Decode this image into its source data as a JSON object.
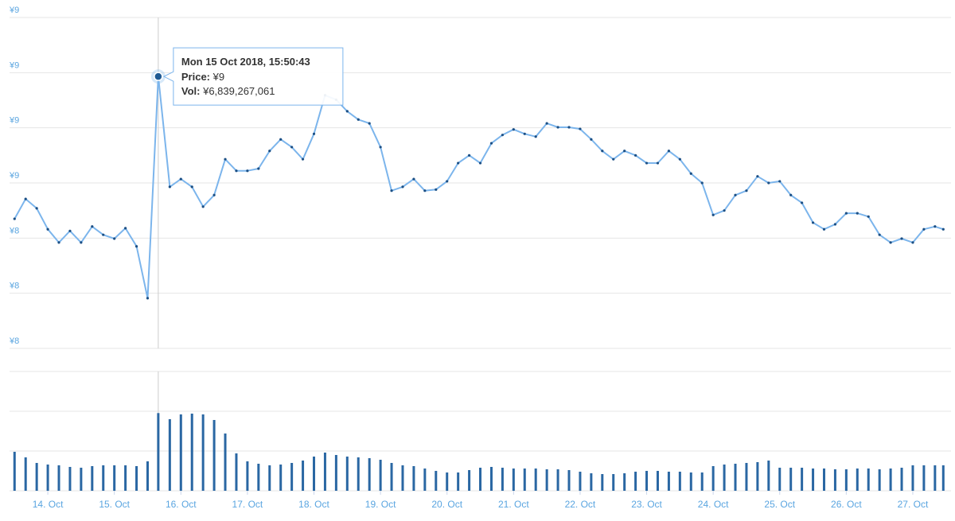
{
  "chart_data": {
    "type": "line",
    "x": [
      "2018-10-13T12:00",
      "2018-10-13T16:00",
      "2018-10-13T20:00",
      "2018-10-14T00:00",
      "2018-10-14T04:00",
      "2018-10-14T08:00",
      "2018-10-14T12:00",
      "2018-10-14T16:00",
      "2018-10-14T20:00",
      "2018-10-15T00:00",
      "2018-10-15T04:00",
      "2018-10-15T08:00",
      "2018-10-15T12:00",
      "2018-10-15T15:50:43",
      "2018-10-15T20:00",
      "2018-10-16T00:00",
      "2018-10-16T04:00",
      "2018-10-16T08:00",
      "2018-10-16T12:00",
      "2018-10-16T16:00",
      "2018-10-16T20:00",
      "2018-10-17T00:00",
      "2018-10-17T04:00",
      "2018-10-17T08:00",
      "2018-10-17T12:00",
      "2018-10-17T16:00",
      "2018-10-17T20:00",
      "2018-10-18T00:00",
      "2018-10-18T04:00",
      "2018-10-18T08:00",
      "2018-10-18T12:00",
      "2018-10-18T16:00",
      "2018-10-18T20:00",
      "2018-10-19T00:00",
      "2018-10-19T04:00",
      "2018-10-19T08:00",
      "2018-10-19T12:00",
      "2018-10-19T16:00",
      "2018-10-19T20:00",
      "2018-10-20T00:00",
      "2018-10-20T04:00",
      "2018-10-20T08:00",
      "2018-10-20T12:00",
      "2018-10-20T16:00",
      "2018-10-20T20:00",
      "2018-10-21T00:00",
      "2018-10-21T04:00",
      "2018-10-21T08:00",
      "2018-10-21T12:00",
      "2018-10-21T16:00",
      "2018-10-21T20:00",
      "2018-10-22T00:00",
      "2018-10-22T04:00",
      "2018-10-22T08:00",
      "2018-10-22T12:00",
      "2018-10-22T16:00",
      "2018-10-22T20:00",
      "2018-10-23T00:00",
      "2018-10-23T04:00",
      "2018-10-23T08:00",
      "2018-10-23T12:00",
      "2018-10-23T16:00",
      "2018-10-23T20:00",
      "2018-10-24T00:00",
      "2018-10-24T04:00",
      "2018-10-24T08:00",
      "2018-10-24T12:00",
      "2018-10-24T16:00",
      "2018-10-24T20:00",
      "2018-10-25T00:00",
      "2018-10-25T04:00",
      "2018-10-25T08:00",
      "2018-10-25T12:00",
      "2018-10-25T16:00",
      "2018-10-25T20:00",
      "2018-10-26T00:00",
      "2018-10-26T04:00",
      "2018-10-26T08:00",
      "2018-10-26T12:00",
      "2018-10-26T16:00",
      "2018-10-26T20:00",
      "2018-10-27T00:00",
      "2018-10-27T04:00",
      "2018-10-27T08:00",
      "2018-10-27T11:00"
    ],
    "series": [
      {
        "type": "line",
        "color": "#7cb5ec",
        "marker_color": "#1c4f84",
        "values": [
          8.485,
          8.521,
          8.504,
          8.466,
          8.442,
          8.463,
          8.442,
          8.471,
          8.456,
          8.449,
          8.468,
          8.435,
          8.341,
          8.743,
          8.543,
          8.557,
          8.543,
          8.507,
          8.528,
          8.593,
          8.572,
          8.572,
          8.576,
          8.608,
          8.629,
          8.615,
          8.593,
          8.639,
          8.709,
          8.701,
          8.68,
          8.665,
          8.658,
          8.615,
          8.536,
          8.543,
          8.557,
          8.536,
          8.538,
          8.553,
          8.586,
          8.6,
          8.586,
          8.622,
          8.637,
          8.647,
          8.639,
          8.634,
          8.658,
          8.651,
          8.651,
          8.648,
          8.629,
          8.608,
          8.593,
          8.608,
          8.6,
          8.586,
          8.586,
          8.608,
          8.593,
          8.567,
          8.55,
          8.492,
          8.5,
          8.528,
          8.536,
          8.562,
          8.55,
          8.553,
          8.528,
          8.514,
          8.478,
          8.466,
          8.475,
          8.495,
          8.495,
          8.489,
          8.456,
          8.442,
          8.449,
          8.442,
          8.466,
          8.471,
          8.466
        ]
      },
      {
        "type": "bar",
        "axis": "y2",
        "color": "#2a67a3",
        "values": [
          3430000000,
          2940000000,
          2450000000,
          2310000000,
          2240000000,
          2100000000,
          2030000000,
          2170000000,
          2240000000,
          2240000000,
          2240000000,
          2170000000,
          2590000000,
          6839267061,
          6300000000,
          6720000000,
          6790000000,
          6720000000,
          6230000000,
          5040000000,
          3290000000,
          2590000000,
          2380000000,
          2240000000,
          2310000000,
          2450000000,
          2660000000,
          3010000000,
          3360000000,
          3150000000,
          3010000000,
          2940000000,
          2870000000,
          2730000000,
          2450000000,
          2240000000,
          2170000000,
          1960000000,
          1750000000,
          1610000000,
          1610000000,
          1820000000,
          2030000000,
          2100000000,
          2030000000,
          1960000000,
          1960000000,
          1960000000,
          1890000000,
          1890000000,
          1820000000,
          1680000000,
          1540000000,
          1470000000,
          1470000000,
          1540000000,
          1680000000,
          1750000000,
          1750000000,
          1680000000,
          1680000000,
          1610000000,
          1610000000,
          2170000000,
          2310000000,
          2380000000,
          2450000000,
          2520000000,
          2660000000,
          2030000000,
          2030000000,
          2030000000,
          1960000000,
          1960000000,
          1890000000,
          1890000000,
          1960000000,
          1960000000,
          1890000000,
          1960000000,
          2030000000,
          2240000000,
          2240000000,
          2240000000,
          2240000000
        ]
      }
    ],
    "xlim": [
      "2018-10-13T10:12",
      "2018-10-27T10:55"
    ],
    "xticks": [
      {
        "value": "2018-10-14T00:00",
        "label": "14. Oct"
      },
      {
        "value": "2018-10-15T00:00",
        "label": "15. Oct"
      },
      {
        "value": "2018-10-16T00:00",
        "label": "16. Oct"
      },
      {
        "value": "2018-10-17T00:00",
        "label": "17. Oct"
      },
      {
        "value": "2018-10-18T00:00",
        "label": "18. Oct"
      },
      {
        "value": "2018-10-19T00:00",
        "label": "19. Oct"
      },
      {
        "value": "2018-10-20T00:00",
        "label": "20. Oct"
      },
      {
        "value": "2018-10-21T00:00",
        "label": "21. Oct"
      },
      {
        "value": "2018-10-22T00:00",
        "label": "22. Oct"
      },
      {
        "value": "2018-10-23T00:00",
        "label": "23. Oct"
      },
      {
        "value": "2018-10-24T00:00",
        "label": "24. Oct"
      },
      {
        "value": "2018-10-25T00:00",
        "label": "25. Oct"
      },
      {
        "value": "2018-10-26T00:00",
        "label": "26. Oct"
      },
      {
        "value": "2018-10-27T00:00",
        "label": "27. Oct"
      }
    ],
    "ylim": [
      8.25,
      8.85
    ],
    "yticks": [
      {
        "value": 8.25,
        "label": "¥8"
      },
      {
        "value": 8.35,
        "label": "¥8"
      },
      {
        "value": 8.45,
        "label": "¥8"
      },
      {
        "value": 8.55,
        "label": "¥9"
      },
      {
        "value": 8.65,
        "label": "¥9"
      },
      {
        "value": 8.75,
        "label": "¥9"
      },
      {
        "value": 8.85,
        "label": "¥9"
      }
    ],
    "y2lim": [
      0,
      10500000000
    ],
    "y2ticks": [
      0,
      3500000000,
      7000000000,
      10500000000
    ],
    "grid": true,
    "tooltip": {
      "date": "Mon 15 Oct 2018, 15:50:43",
      "price_label": "Price:",
      "price": "¥9",
      "vol_label": "Vol:",
      "vol": "¥6,839,267,061"
    }
  }
}
